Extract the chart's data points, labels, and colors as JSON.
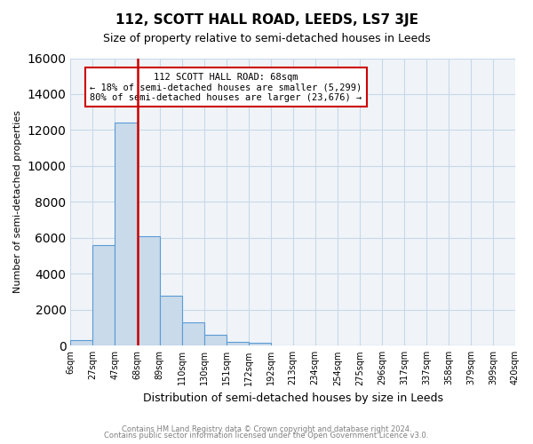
{
  "title": "112, SCOTT HALL ROAD, LEEDS, LS7 3JE",
  "subtitle": "Size of property relative to semi-detached houses in Leeds",
  "xlabel": "Distribution of semi-detached houses by size in Leeds",
  "ylabel": "Number of semi-detached properties",
  "bin_labels": [
    "6sqm",
    "27sqm",
    "47sqm",
    "68sqm",
    "89sqm",
    "110sqm",
    "130sqm",
    "151sqm",
    "172sqm",
    "192sqm",
    "213sqm",
    "234sqm",
    "254sqm",
    "275sqm",
    "296sqm",
    "317sqm",
    "337sqm",
    "358sqm",
    "379sqm",
    "399sqm",
    "420sqm"
  ],
  "bar_values": [
    300,
    5600,
    12400,
    6100,
    2800,
    1300,
    600,
    230,
    150,
    0,
    0,
    0,
    0,
    0,
    0,
    0,
    0,
    0,
    0,
    0
  ],
  "bar_color": "#c9daea",
  "bar_edge_color": "#5b9bd5",
  "property_line_x": 3,
  "property_line_color": "#cc0000",
  "ylim": [
    0,
    16000
  ],
  "yticks": [
    0,
    2000,
    4000,
    6000,
    8000,
    10000,
    12000,
    14000,
    16000
  ],
  "annotation_title": "112 SCOTT HALL ROAD: 68sqm",
  "annotation_line1": "← 18% of semi-detached houses are smaller (5,299)",
  "annotation_line2": "80% of semi-detached houses are larger (23,676) →",
  "annotation_box_color": "#cc0000",
  "footer1": "Contains HM Land Registry data © Crown copyright and database right 2024.",
  "footer2": "Contains public sector information licensed under the Open Government Licence v3.0.",
  "grid_color": "#c8d8e8",
  "background_color": "#f0f4f8"
}
